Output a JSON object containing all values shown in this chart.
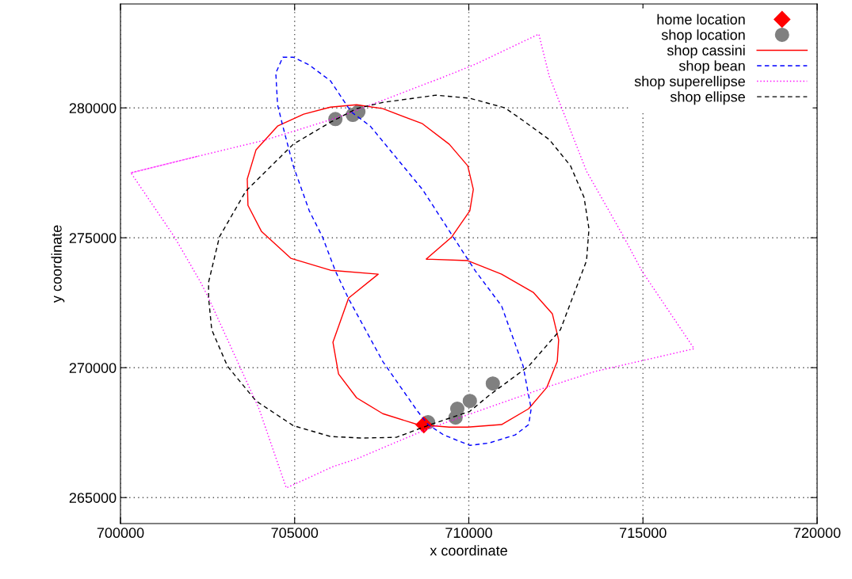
{
  "chart_data": {
    "type": "line",
    "xlabel": "x coordinate",
    "ylabel": "y coordinate",
    "xlim": [
      700000,
      720000
    ],
    "ylim": [
      264000,
      284000
    ],
    "xticks": [
      700000,
      705000,
      710000,
      715000,
      720000
    ],
    "yticks": [
      265000,
      270000,
      275000,
      280000
    ],
    "grid": true,
    "legend": "top right",
    "series": [
      {
        "name": "home location",
        "type": "scatter",
        "marker": "diamond",
        "color": "#ff0000",
        "x": [
          708710
        ],
        "values": [
          267800
        ]
      },
      {
        "name": "shop location",
        "type": "scatter",
        "marker": "circle",
        "color": "#808080",
        "x": [
          706170,
          706670,
          706830,
          708830,
          709620,
          709670,
          710030,
          710690
        ],
        "values": [
          279570,
          279730,
          279850,
          267900,
          268080,
          268420,
          268720,
          269390
        ]
      },
      {
        "name": "shop cassini",
        "line_style": "solid",
        "color": "#ff0000",
        "x": [
          708780,
          709510,
          710030,
          710130,
          709970,
          709440,
          708670,
          707530,
          706780,
          706030,
          705260,
          704510,
          703890,
          703640,
          703660,
          704050,
          704890,
          706030,
          707400,
          706550,
          706100,
          706260,
          706780,
          707530,
          708530,
          709440,
          709970,
          710940,
          711720,
          712240,
          712540,
          712580,
          712400,
          711850,
          710940,
          709970,
          708780,
          709510
        ],
        "values": [
          274180,
          275030,
          276040,
          276860,
          277770,
          278600,
          279390,
          279970,
          280120,
          280030,
          279760,
          279300,
          278380,
          277260,
          276250,
          275240,
          274210,
          273750,
          273600,
          272680,
          270980,
          269760,
          268840,
          268230,
          267810,
          267710,
          267710,
          267810,
          268420,
          269240,
          270240,
          271070,
          272070,
          272900,
          273600,
          274120,
          274180,
          275030
        ]
      },
      {
        "name": "shop bean",
        "line_style": "dashed",
        "color": "#0000ff",
        "x": [
          704660,
          704960,
          705420,
          706030,
          706620,
          707170,
          707920,
          708670,
          709510,
          710190,
          710940,
          711560,
          711790,
          711720,
          711330,
          710580,
          710030,
          709280,
          708830,
          708530,
          707530,
          706550,
          706170,
          705800,
          705420,
          704960,
          704660,
          704510,
          704460,
          704660,
          704960
        ],
        "values": [
          281950,
          281950,
          281650,
          281040,
          279850,
          279300,
          278080,
          276860,
          275120,
          273720,
          272380,
          270060,
          268420,
          267810,
          267410,
          267100,
          267010,
          267410,
          267810,
          268320,
          270240,
          272650,
          273720,
          275030,
          276040,
          277770,
          279300,
          280120,
          281340,
          281950,
          281950
        ]
      },
      {
        "name": "shop superellipse",
        "line_style": "dotted",
        "color": "#ff00ff",
        "x": [
          700300,
          702230,
          704120,
          706170,
          707920,
          709280,
          710190,
          712010,
          712310,
          713380,
          714450,
          714970,
          716470,
          713610,
          712080,
          708830,
          706780,
          706100,
          704760,
          703980,
          702530,
          702300,
          701550,
          700300,
          702230
        ],
        "values": [
          277500,
          278140,
          278750,
          279600,
          280490,
          281190,
          281680,
          282840,
          281220,
          277560,
          275030,
          273720,
          270730,
          269850,
          269180,
          267650,
          266490,
          266190,
          265370,
          268410,
          272680,
          273290,
          275030,
          277500,
          278140
        ]
      },
      {
        "name": "shop ellipse",
        "line_style": "dashed",
        "color": "#000000",
        "x": [
          702530,
          702840,
          703600,
          704960,
          706030,
          706780,
          707530,
          709060,
          710030,
          711040,
          711560,
          712310,
          712920,
          713310,
          713450,
          713380,
          712630,
          711720,
          710580,
          710030,
          708900,
          707920,
          706940,
          706030,
          704960,
          703890,
          703070,
          702620,
          702530,
          702530,
          702840
        ],
        "values": [
          273290,
          275030,
          276800,
          278600,
          279450,
          279970,
          280210,
          280490,
          280370,
          280000,
          279510,
          278780,
          277770,
          276550,
          275340,
          274120,
          271460,
          270060,
          268930,
          268320,
          267810,
          267320,
          267290,
          267350,
          267770,
          268720,
          270060,
          271460,
          272680,
          273290,
          275030
        ]
      }
    ]
  }
}
